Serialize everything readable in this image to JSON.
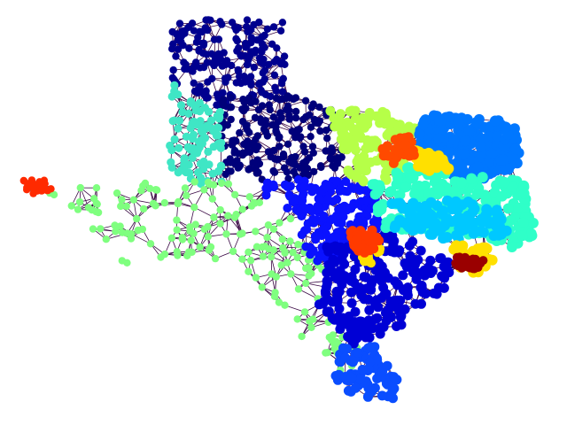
{
  "figure": {
    "background": "#ffffff",
    "edge_color": "#3b0a45",
    "node_color_scale": "jet",
    "regions": [
      {
        "id": "panhandle-north",
        "color": "#00008f"
      },
      {
        "id": "panhandle-central",
        "color": "#00007a"
      },
      {
        "id": "west-panhandle-strip",
        "color": "#3fe6c5"
      },
      {
        "id": "west-texas",
        "color": "#7fff7f"
      },
      {
        "id": "el-paso-cluster",
        "color": "#ff2a00"
      },
      {
        "id": "central-blue",
        "color": "#0a12ff"
      },
      {
        "id": "south-central-blue",
        "color": "#0000d5"
      },
      {
        "id": "south-tip",
        "color": "#0a4dff"
      },
      {
        "id": "east-azure",
        "color": "#0077ff"
      },
      {
        "id": "east-cyan",
        "color": "#2fffc8"
      },
      {
        "id": "east-lightblue",
        "color": "#00c8ff"
      },
      {
        "id": "north-yellowgreen",
        "color": "#b6ff48"
      },
      {
        "id": "dfw-hotspot",
        "color": "#ff4a00"
      },
      {
        "id": "austin-hotspot",
        "color": "#ff3a00"
      },
      {
        "id": "houston-hotspot",
        "color": "#9a0000"
      },
      {
        "id": "yellow-patches",
        "color": "#ffe000"
      }
    ]
  }
}
